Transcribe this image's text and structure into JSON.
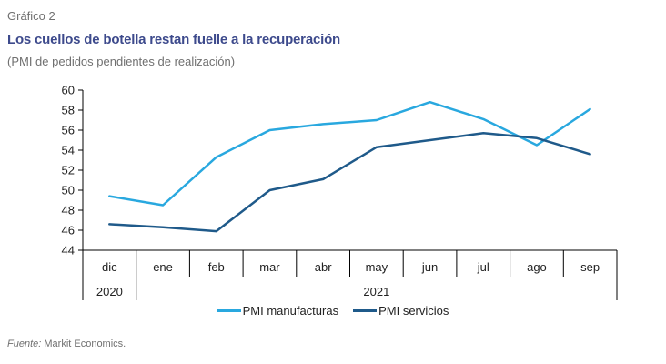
{
  "header": {
    "chart_number": "Gráfico 2",
    "title": "Los cuellos de botella restan fuelle a la recuperación",
    "subtitle": "(PMI de pedidos pendientes de realización)"
  },
  "footer": {
    "source_label": "Fuente:",
    "source_text": " Markit Economics."
  },
  "colors": {
    "manufacturas": "#29a8df",
    "servicios": "#1f5a8a",
    "axis": "#000000"
  },
  "chart_data": {
    "type": "line",
    "categories": [
      "dic",
      "ene",
      "feb",
      "mar",
      "abr",
      "may",
      "jun",
      "jul",
      "ago",
      "sep"
    ],
    "year_groups": [
      {
        "label": "2020",
        "count": 1
      },
      {
        "label": "2021",
        "count": 9
      }
    ],
    "ylim": [
      44,
      60
    ],
    "yticks": [
      44,
      46,
      48,
      50,
      52,
      54,
      56,
      58,
      60
    ],
    "series": [
      {
        "name": "PMI manufacturas",
        "values": [
          49.4,
          48.5,
          53.3,
          56.0,
          56.6,
          57.0,
          58.8,
          57.1,
          54.5,
          58.1
        ]
      },
      {
        "name": "PMI servicios",
        "values": [
          46.6,
          46.3,
          45.9,
          50.0,
          51.1,
          54.3,
          55.0,
          55.7,
          55.2,
          53.6
        ]
      }
    ],
    "legend_position": "bottom"
  }
}
